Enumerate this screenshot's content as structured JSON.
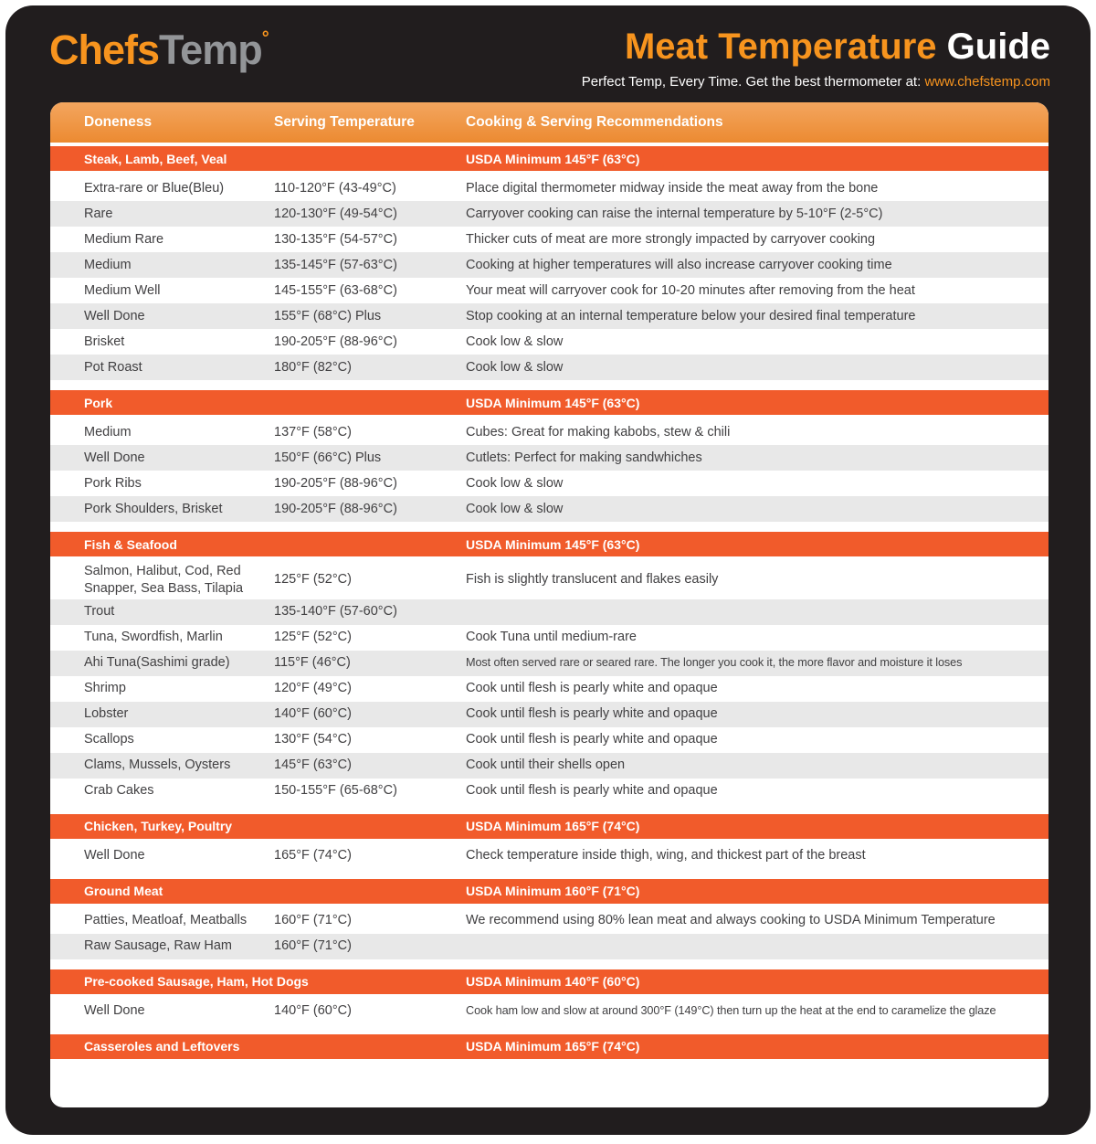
{
  "colors": {
    "background_dark": "#211d1e",
    "accent_orange": "#f7941e",
    "section_bar_orange": "#f15b2b",
    "table_header_orange": "#ee9040",
    "alt_row_gray": "#e8e8e8",
    "body_text": "#414042",
    "logo_gray": "#939598"
  },
  "header": {
    "logo_chefs": "Chefs",
    "logo_temp": "Temp",
    "logo_degree": "°",
    "title_accent": "Meat Temperature",
    "title_rest": " Guide",
    "tagline": "Perfect Temp, Every Time. Get the best thermometer at:",
    "tagline_link": "www.chefstemp.com"
  },
  "table": {
    "columns": [
      "Doneness",
      "Serving Temperature",
      "Cooking & Serving Recommendations"
    ],
    "sections": [
      {
        "title": "Steak, Lamb, Beef, Veal",
        "usda": "USDA Minimum 145°F (63°C)",
        "rows": [
          {
            "doneness": "Extra-rare or Blue(Bleu)",
            "temp": "110-120°F (43-49°C)",
            "note": "Place digital thermometer midway inside the meat away from the bone"
          },
          {
            "doneness": "Rare",
            "temp": "120-130°F (49-54°C)",
            "note": "Carryover cooking can raise the internal temperature by 5-10°F (2-5°C)"
          },
          {
            "doneness": "Medium Rare",
            "temp": "130-135°F (54-57°C)",
            "note": "Thicker cuts of meat are more strongly impacted by carryover cooking"
          },
          {
            "doneness": "Medium",
            "temp": "135-145°F (57-63°C)",
            "note": "Cooking at higher temperatures will also increase carryover cooking time"
          },
          {
            "doneness": "Medium Well",
            "temp": "145-155°F (63-68°C)",
            "note": "Your meat will carryover cook for 10-20 minutes after removing from the heat"
          },
          {
            "doneness": "Well Done",
            "temp": "155°F (68°C) Plus",
            "note": "Stop cooking at an internal temperature below your desired final temperature"
          },
          {
            "doneness": "Brisket",
            "temp": "190-205°F (88-96°C)",
            "note": "Cook low & slow"
          },
          {
            "doneness": "Pot Roast",
            "temp": "180°F (82°C)",
            "note": "Cook low & slow"
          }
        ]
      },
      {
        "title": "Pork",
        "usda": "USDA Minimum 145°F (63°C)",
        "rows": [
          {
            "doneness": "Medium",
            "temp": "137°F (58°C)",
            "note": "Cubes: Great for making kabobs, stew & chili"
          },
          {
            "doneness": "Well Done",
            "temp": "150°F (66°C) Plus",
            "note": "Cutlets: Perfect for making sandwhiches"
          },
          {
            "doneness": "Pork Ribs",
            "temp": "190-205°F (88-96°C)",
            "note": "Cook low & slow"
          },
          {
            "doneness": "Pork Shoulders, Brisket",
            "temp": "190-205°F (88-96°C)",
            "note": "Cook low & slow"
          }
        ]
      },
      {
        "title": "Fish & Seafood",
        "usda": "USDA Minimum 145°F (63°C)",
        "rows": [
          {
            "doneness": "Salmon, Halibut, Cod, Red Snapper, Sea Bass, Tilapia",
            "temp": "125°F (52°C)",
            "note": "Fish is slightly translucent and flakes easily"
          },
          {
            "doneness": "Trout",
            "temp": "135-140°F (57-60°C)",
            "note": ""
          },
          {
            "doneness": "Tuna, Swordfish, Marlin",
            "temp": "125°F (52°C)",
            "note": "Cook Tuna until medium-rare"
          },
          {
            "doneness": "Ahi Tuna(Sashimi grade)",
            "temp": "115°F (46°C)",
            "note": "Most often served rare or seared rare. The longer you cook it, the more flavor and moisture it loses"
          },
          {
            "doneness": "Shrimp",
            "temp": "120°F (49°C)",
            "note": "Cook until flesh is pearly white and opaque"
          },
          {
            "doneness": "Lobster",
            "temp": "140°F (60°C)",
            "note": "Cook until flesh is pearly white and opaque"
          },
          {
            "doneness": "Scallops",
            "temp": "130°F (54°C)",
            "note": "Cook until flesh is pearly white and opaque"
          },
          {
            "doneness": "Clams, Mussels, Oysters",
            "temp": "145°F (63°C)",
            "note": "Cook until their shells open"
          },
          {
            "doneness": "Crab Cakes",
            "temp": "150-155°F (65-68°C)",
            "note": "Cook until flesh is pearly white and opaque"
          }
        ]
      },
      {
        "title": "Chicken, Turkey, Poultry",
        "usda": "USDA Minimum 165°F (74°C)",
        "rows": [
          {
            "doneness": "Well Done",
            "temp": "165°F (74°C)",
            "note": "Check temperature inside thigh, wing, and thickest part of the breast"
          }
        ]
      },
      {
        "title": "Ground Meat",
        "usda": "USDA Minimum 160°F (71°C)",
        "rows": [
          {
            "doneness": "Patties, Meatloaf, Meatballs",
            "temp": "160°F (71°C)",
            "note": "We recommend using 80% lean meat and always cooking to USDA Minimum Temperature"
          },
          {
            "doneness": "Raw Sausage, Raw Ham",
            "temp": "160°F (71°C)",
            "note": ""
          }
        ]
      },
      {
        "title": "Pre-cooked Sausage, Ham, Hot Dogs",
        "usda": "USDA Minimum 140°F (60°C)",
        "rows": [
          {
            "doneness": "Well Done",
            "temp": "140°F (60°C)",
            "note": "Cook ham low and slow at around 300°F (149°C) then turn up the heat at the end to caramelize the glaze"
          }
        ]
      },
      {
        "title": "Casseroles and Leftovers",
        "usda": "USDA Minimum 165°F (74°C)",
        "rows": []
      }
    ]
  }
}
